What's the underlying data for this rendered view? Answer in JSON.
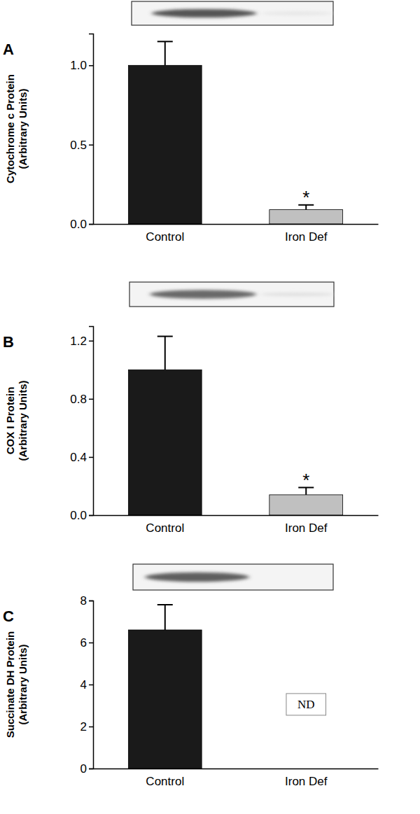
{
  "chart_data": [
    {
      "type": "bar",
      "title": "A",
      "y_label": [
        "Cytochrome c Protein",
        "(Arbitrary Units)"
      ],
      "categories": [
        "Control",
        "Iron Def"
      ],
      "values": [
        1.0,
        0.09
      ],
      "errors": [
        0.15,
        0.03
      ],
      "colors": [
        "#1a1a1a",
        "#c0c0c0"
      ],
      "ylim": [
        0,
        1.2
      ],
      "yticks": [
        {
          "value": 0,
          "label": "0.0"
        },
        {
          "value": 0.5,
          "label": "0.5"
        },
        {
          "value": 1,
          "label": "1.0"
        }
      ],
      "annotations": [
        {
          "text": "*",
          "category": 1
        }
      ]
    },
    {
      "type": "bar",
      "title": "B",
      "y_label": [
        "COX I Protein",
        "(Arbitrary Units)"
      ],
      "categories": [
        "Control",
        "Iron Def"
      ],
      "values": [
        1.0,
        0.14
      ],
      "errors": [
        0.23,
        0.05
      ],
      "colors": [
        "#1a1a1a",
        "#c0c0c0"
      ],
      "ylim": [
        0,
        1.3
      ],
      "yticks": [
        {
          "value": 0,
          "label": "0.0"
        },
        {
          "value": 0.4,
          "label": "0.4"
        },
        {
          "value": 0.8,
          "label": "0.8"
        },
        {
          "value": 1.2,
          "label": "1.2"
        }
      ],
      "annotations": [
        {
          "text": "*",
          "category": 1
        }
      ]
    },
    {
      "type": "bar",
      "title": "C",
      "y_label": [
        "Succinate DH Protein",
        "(Arbitrary Units)"
      ],
      "categories": [
        "Control",
        "Iron Def"
      ],
      "values": [
        6.6,
        null
      ],
      "errors": [
        1.2,
        null
      ],
      "colors": [
        "#1a1a1a",
        "#c0c0c0"
      ],
      "ylim": [
        0,
        8
      ],
      "yticks": [
        0,
        2,
        4,
        6,
        8
      ],
      "annotations": [
        {
          "text": "ND",
          "category": 1
        }
      ]
    }
  ]
}
